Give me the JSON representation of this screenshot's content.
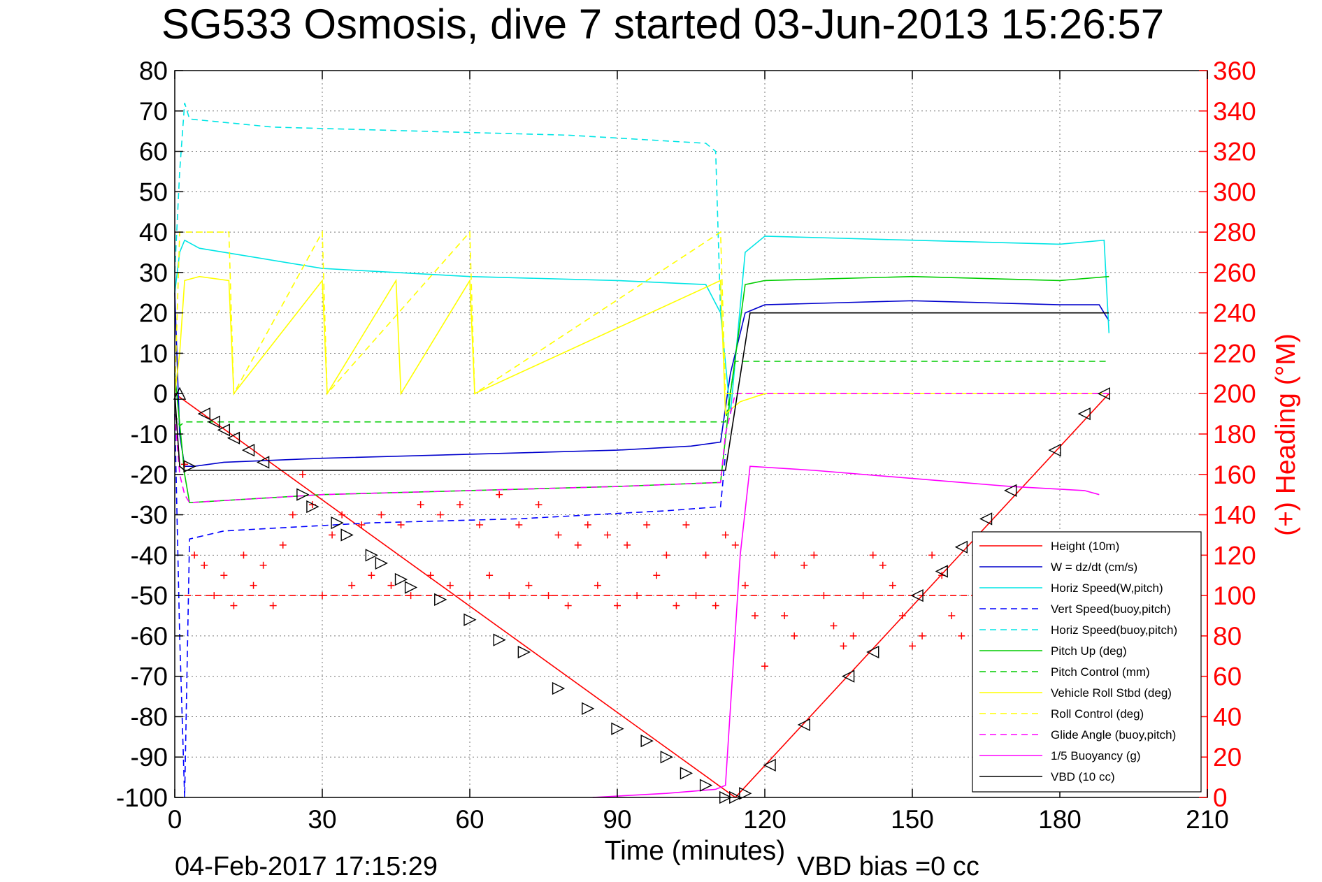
{
  "chart_data": {
    "type": "line",
    "title": "SG533 Osmosis, dive 7 started 03-Jun-2013 15:26:57",
    "xlabel": "Time (minutes)",
    "ylabel": "",
    "y2label": "(+) Heading (°M)",
    "xlim": [
      0,
      210
    ],
    "ylim": [
      -100,
      80
    ],
    "y2lim": [
      0,
      360
    ],
    "x_ticks": [
      "0",
      "30",
      "60",
      "90",
      "120",
      "150",
      "180",
      "210"
    ],
    "y_ticks": [
      "-100",
      "-90",
      "-80",
      "-70",
      "-60",
      "-50",
      "-40",
      "-30",
      "-20",
      "-10",
      "0",
      "10",
      "20",
      "30",
      "40",
      "50",
      "60",
      "70",
      "80"
    ],
    "y2_ticks": [
      "0",
      "20",
      "40",
      "60",
      "80",
      "100",
      "120",
      "140",
      "160",
      "180",
      "200",
      "220",
      "240",
      "260",
      "280",
      "300",
      "320",
      "340",
      "360"
    ],
    "grid": true,
    "legend_position": "bottom-right",
    "footer_left": "04-Feb-2017 17:15:29",
    "footer_right": "VBD bias =0 cc",
    "series": [
      {
        "name": "Height (10m)",
        "color": "#ff0000",
        "style": "solid",
        "x": [
          0,
          114,
          190
        ],
        "y": [
          0,
          -100,
          0
        ]
      },
      {
        "name": "W = dz/dt (cm/s)",
        "color": "#0000cc",
        "style": "solid",
        "x": [
          0,
          1,
          2,
          4,
          10,
          30,
          60,
          90,
          105,
          111,
          113,
          116,
          120,
          150,
          180,
          188,
          190
        ],
        "y": [
          25,
          -10,
          -18,
          -18,
          -17,
          -16,
          -15,
          -14,
          -13,
          -12,
          5,
          20,
          22,
          23,
          22,
          22,
          18
        ]
      },
      {
        "name": "Horiz Speed(W,pitch)",
        "color": "#00e5e5",
        "style": "solid",
        "x": [
          0,
          1,
          2,
          5,
          30,
          60,
          90,
          108,
          111,
          113,
          116,
          120,
          150,
          180,
          189,
          190
        ],
        "y": [
          25,
          35,
          38,
          36,
          31,
          29,
          28,
          27,
          20,
          -5,
          35,
          39,
          38,
          37,
          38,
          15
        ]
      },
      {
        "name": "Vert Speed(buoy,pitch)",
        "color": "#0000ff",
        "style": "dashed",
        "x": [
          0,
          1,
          2,
          3,
          10,
          40,
          70,
          100,
          111,
          112
        ],
        "y": [
          -5,
          -60,
          -100,
          -36,
          -34,
          -32,
          -31,
          -29,
          -28,
          -15
        ]
      },
      {
        "name": "Horiz Speed(buoy,pitch)",
        "color": "#00e5e5",
        "style": "dashed",
        "x": [
          0,
          1,
          2,
          3,
          20,
          50,
          80,
          108,
          110,
          111
        ],
        "y": [
          30,
          55,
          72,
          68,
          66,
          65,
          64,
          62,
          60,
          20
        ]
      },
      {
        "name": "Pitch Up (deg)",
        "color": "#00cc00",
        "style": "solid",
        "x": [
          0,
          2,
          3,
          30,
          60,
          90,
          111,
          113,
          116,
          120,
          150,
          180,
          190
        ],
        "y": [
          5,
          -20,
          -27,
          -25,
          -24,
          -23,
          -22,
          0,
          27,
          28,
          29,
          28,
          29
        ]
      },
      {
        "name": "Pitch Control (mm)",
        "color": "#00cc00",
        "style": "dashed",
        "x": [
          0,
          1,
          2,
          111,
          112,
          114,
          190
        ],
        "y": [
          -5,
          -8,
          -7,
          -7,
          -7,
          8,
          8
        ]
      },
      {
        "name": "Vehicle Roll Stbd (deg)",
        "color": "#ffff00",
        "style": "solid",
        "x": [
          0,
          1,
          2,
          5,
          11,
          12,
          30,
          31,
          45,
          46,
          60,
          61,
          111,
          112,
          115,
          120,
          140,
          160,
          180,
          190
        ],
        "y": [
          0,
          10,
          28,
          29,
          28,
          0,
          28,
          0,
          28,
          0,
          28,
          0,
          28,
          -5,
          -2,
          0,
          0,
          0,
          0,
          0
        ]
      },
      {
        "name": "Roll Control (deg)",
        "color": "#ffff00",
        "style": "dashed",
        "x": [
          0,
          1,
          2,
          5,
          11,
          12,
          30,
          31,
          60,
          61,
          111,
          112,
          115,
          120,
          150,
          190
        ],
        "y": [
          0,
          40,
          40,
          40,
          40,
          0,
          40,
          0,
          40,
          0,
          40,
          0,
          0,
          0,
          0,
          0
        ]
      },
      {
        "name": "Glide Angle (buoy,pitch)",
        "color": "#ff00ff",
        "style": "dashed",
        "x": [
          0,
          1,
          2,
          3,
          30,
          60,
          90,
          111,
          112,
          114,
          190
        ],
        "y": [
          -5,
          -20,
          -25,
          -27,
          -25,
          -24,
          -23,
          -22,
          -10,
          0,
          0
        ]
      },
      {
        "name": "1/5 Buoyancy (g)",
        "color": "#ff00ff",
        "style": "solid",
        "x": [
          85,
          100,
          110,
          112,
          115,
          117,
          130,
          150,
          170,
          185,
          188
        ],
        "y": [
          -100,
          -99,
          -98,
          -97,
          -40,
          -18,
          -19,
          -21,
          -23,
          -24,
          -25
        ]
      },
      {
        "name": "VBD (10 cc)",
        "color": "#000000",
        "style": "solid",
        "x": [
          0,
          1,
          2,
          111,
          112,
          117,
          190
        ],
        "y": [
          0,
          -18,
          -19,
          -19,
          -19,
          20,
          20
        ]
      },
      {
        "name": "",
        "color": "#ff0000",
        "style": "dashed",
        "x": [
          2,
          190
        ],
        "y": [
          -50,
          -50
        ]
      }
    ],
    "heading_points": {
      "color": "#ff0000",
      "marker": "+",
      "x": [
        2,
        4,
        6,
        8,
        10,
        12,
        14,
        16,
        18,
        20,
        22,
        24,
        26,
        28,
        30,
        32,
        34,
        36,
        38,
        40,
        42,
        44,
        46,
        48,
        50,
        52,
        54,
        56,
        58,
        60,
        62,
        64,
        66,
        68,
        70,
        72,
        74,
        76,
        78,
        80,
        82,
        84,
        86,
        88,
        90,
        92,
        94,
        96,
        98,
        100,
        102,
        104,
        106,
        108,
        110,
        112,
        114,
        116,
        118,
        120,
        122,
        124,
        126,
        128,
        130,
        132,
        134,
        136,
        138,
        140,
        142,
        144,
        146,
        148,
        150,
        152,
        154,
        156,
        158,
        160
      ],
      "y": [
        165,
        120,
        115,
        100,
        110,
        95,
        120,
        105,
        115,
        95,
        125,
        140,
        160,
        145,
        100,
        130,
        140,
        105,
        135,
        110,
        140,
        105,
        135,
        100,
        145,
        110,
        140,
        105,
        145,
        100,
        135,
        110,
        150,
        100,
        135,
        105,
        145,
        100,
        130,
        95,
        125,
        135,
        105,
        130,
        95,
        125,
        100,
        135,
        110,
        120,
        95,
        135,
        100,
        120,
        95,
        130,
        125,
        105,
        90,
        65,
        120,
        90,
        80,
        115,
        120,
        100,
        85,
        75,
        80,
        100,
        120,
        115,
        105,
        90,
        75,
        80,
        120,
        110,
        90,
        80
      ]
    },
    "marker_points": {
      "color": "#000000",
      "x": [
        1,
        3,
        6,
        8,
        10,
        12,
        15,
        18,
        26,
        28,
        33,
        35,
        40,
        42,
        46,
        48,
        54,
        60,
        66,
        71,
        78,
        84,
        90,
        96,
        100,
        104,
        108,
        112,
        114,
        116,
        121,
        128,
        137,
        142,
        151,
        156,
        160,
        165,
        170,
        179,
        185,
        189
      ],
      "y": [
        0,
        -18,
        -5,
        -7,
        -9,
        -11,
        -14,
        -17,
        -25,
        -28,
        -32,
        -35,
        -40,
        -42,
        -46,
        -48,
        -51,
        -56,
        -61,
        -64,
        -73,
        -78,
        -83,
        -86,
        -90,
        -94,
        -97,
        -100,
        -100,
        -99,
        -92,
        -82,
        -70,
        -64,
        -50,
        -44,
        -38,
        -31,
        -24,
        -14,
        -5,
        0
      ],
      "dir": [
        "up",
        "right",
        "left",
        "left",
        "left",
        "left",
        "left",
        "left",
        "right",
        "right",
        "right",
        "right",
        "right",
        "right",
        "right",
        "right",
        "right",
        "right",
        "right",
        "right",
        "right",
        "right",
        "right",
        "right",
        "right",
        "right",
        "right",
        "right",
        "right",
        "right",
        "left",
        "left",
        "left",
        "left",
        "left",
        "left",
        "left",
        "left",
        "left",
        "left",
        "left",
        "left"
      ]
    }
  }
}
